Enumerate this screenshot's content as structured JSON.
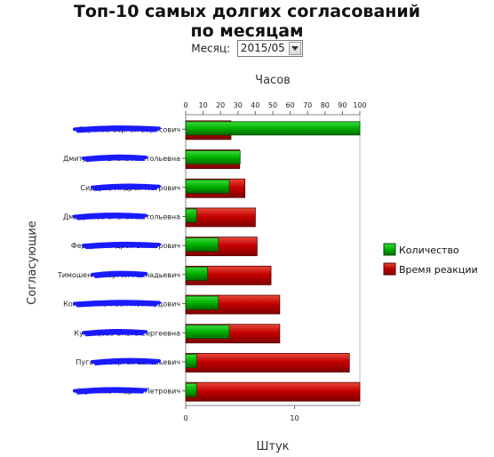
{
  "title_line1": "Топ-10 самых долгих согласований",
  "title_line2": "по месяцам",
  "month_label": "Месяц:",
  "month_value": "2015/05",
  "colors": {
    "count": "#00a000",
    "reaction": "#c00000"
  },
  "chart_data": {
    "type": "bar",
    "orientation": "horizontal",
    "categories": [
      "Терехов Сергей Борисович",
      "Дмитриева Елена Анатольевна",
      "Сидоров Андрей Петрович",
      "Дмитриева Ольга Анатольевна",
      "Федоров Андрей Викторович",
      "Тимошенко Сергей Геннадьевич",
      "Колесников Иван Леонардович",
      "Кузнецова Ольга Сергеевна",
      "Пугачев Сергей Евгеньевич",
      "Шумилов Андрей Петрович"
    ],
    "series": [
      {
        "name": "Время реакции",
        "axis": "top",
        "values": [
          26,
          31,
          34,
          40,
          41,
          49,
          54,
          54,
          94,
          100
        ]
      },
      {
        "name": "Количество",
        "axis": "bottom",
        "values": [
          16,
          5,
          4,
          1,
          3,
          2,
          3,
          4,
          1,
          1
        ]
      }
    ],
    "xlabel_top": "Часов",
    "xlabel_bottom": "Штук",
    "ylabel": "Согласующие",
    "xlim_top": [
      0,
      100
    ],
    "xticks_top": [
      "0",
      "10",
      "20",
      "30",
      "40",
      "50",
      "60",
      "70",
      "80",
      "90",
      "100"
    ],
    "xlim_bottom": [
      0,
      16
    ],
    "xticks_bottom": [
      "0",
      "10"
    ],
    "legend_position": "right",
    "legend": [
      "Количество",
      "Время реакции"
    ]
  }
}
